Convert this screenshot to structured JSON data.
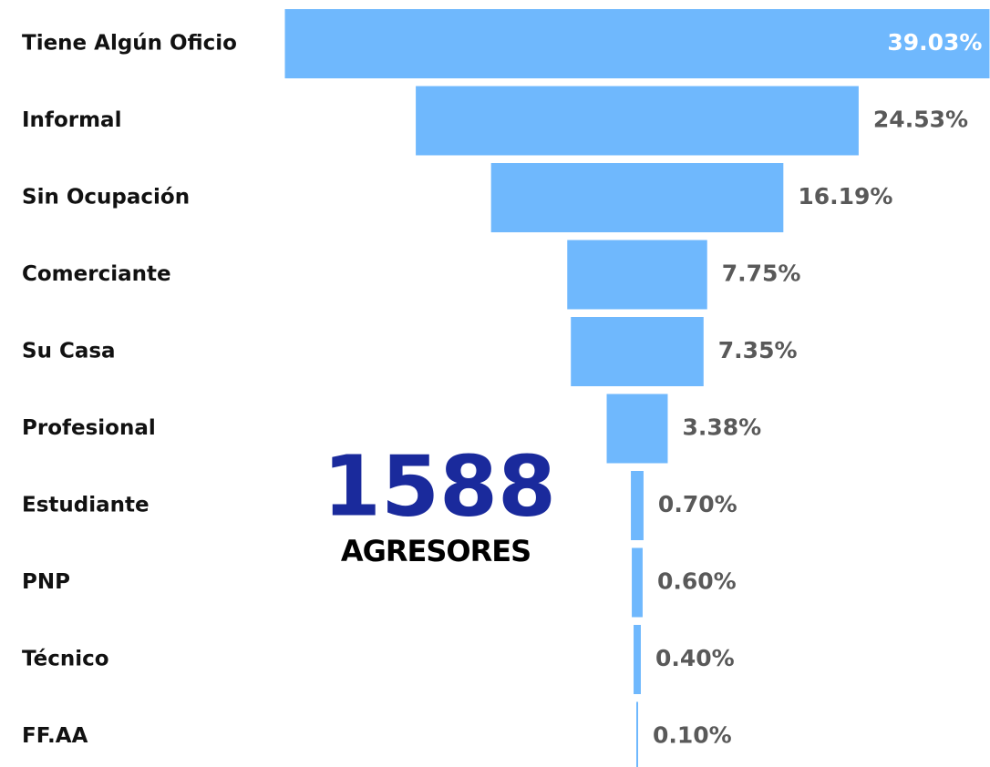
{
  "chart_data": {
    "type": "funnel",
    "categories": [
      "Tiene Algún Oficio",
      "Informal",
      "Sin Ocupación",
      "Comerciante",
      "Su Casa",
      "Profesional",
      "Estudiante",
      "PNP",
      "Técnico",
      "FF.AA"
    ],
    "values": [
      39.03,
      24.53,
      16.19,
      7.75,
      7.35,
      3.38,
      0.7,
      0.6,
      0.4,
      0.1
    ],
    "value_labels": [
      "39.03%",
      "24.53%",
      "16.19%",
      "7.75%",
      "7.35%",
      "3.38%",
      "0.70%",
      "0.60%",
      "0.40%",
      "0.10%"
    ],
    "color": "#6fb8fd",
    "annotations": [
      "1588",
      "AGRESORES"
    ]
  }
}
